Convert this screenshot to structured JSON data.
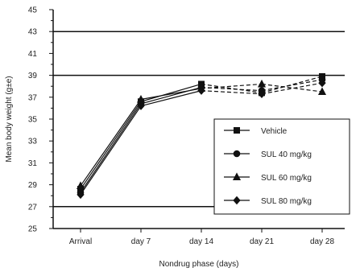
{
  "chart_data": {
    "type": "line",
    "xlabel": "Nondrug phase (days)",
    "ylabel": "Mean body weight (g±e)",
    "categories": [
      "Arrival",
      "day 7",
      "day 14",
      "day 21",
      "day 28"
    ],
    "ylim": [
      25,
      45
    ],
    "yticks": [
      25,
      27,
      29,
      31,
      33,
      35,
      37,
      39,
      41,
      43,
      45
    ],
    "ytick_labels": [
      "25",
      "27",
      "29",
      "31",
      "33",
      "35",
      "37",
      "39",
      "41",
      "43",
      "45"
    ],
    "gridlines_y": [
      27,
      39,
      43
    ],
    "legend_position": "lower-right",
    "series": [
      {
        "name": "Vehicle",
        "marker": "square",
        "line": "solid-then-dashed",
        "values": [
          28.6,
          36.6,
          38.2,
          37.4,
          38.9
        ]
      },
      {
        "name": "SUL 40 mg/kg",
        "marker": "circle",
        "line": "solid-then-dashed",
        "values": [
          28.3,
          36.4,
          37.9,
          37.6,
          38.6
        ]
      },
      {
        "name": "SUL 60 mg/kg",
        "marker": "triangle",
        "line": "solid-then-dashed",
        "values": [
          28.9,
          36.8,
          37.8,
          38.2,
          37.5
        ]
      },
      {
        "name": "SUL 80 mg/kg",
        "marker": "diamond",
        "line": "solid-then-dashed",
        "values": [
          28.1,
          36.2,
          37.6,
          37.3,
          38.3
        ]
      }
    ]
  }
}
